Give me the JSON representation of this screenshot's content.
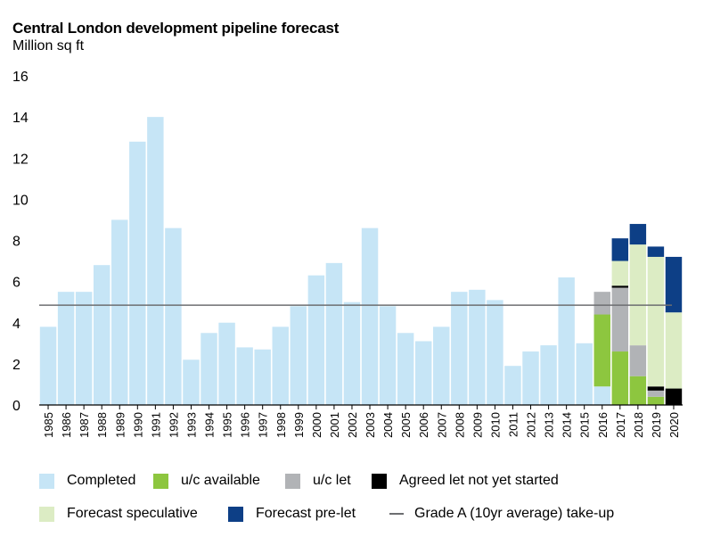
{
  "chart_data": {
    "type": "bar",
    "title": "Central London development pipeline forecast",
    "subtitle": "Million sq ft",
    "ylim": [
      0,
      16
    ],
    "yticks": [
      0,
      2,
      4,
      6,
      8,
      10,
      12,
      14,
      16
    ],
    "categories": [
      "1985",
      "1986",
      "1987",
      "1988",
      "1989",
      "1990",
      "1991",
      "1992",
      "1993",
      "1994",
      "1995",
      "1996",
      "1997",
      "1998",
      "1999",
      "2000",
      "2001",
      "2002",
      "2003",
      "2004",
      "2005",
      "2006",
      "2007",
      "2008",
      "2009",
      "2010",
      "2011",
      "2012",
      "2013",
      "2014",
      "2015",
      "2016",
      "2017",
      "2018",
      "2019",
      "2020"
    ],
    "stacked": true,
    "series": [
      {
        "name": "Completed",
        "color": "#c6e5f6",
        "values": [
          3.8,
          5.5,
          5.5,
          6.8,
          9.0,
          12.8,
          14.0,
          8.6,
          2.2,
          3.5,
          4.0,
          2.8,
          2.7,
          3.8,
          4.8,
          6.3,
          6.9,
          5.0,
          8.6,
          4.8,
          3.5,
          3.1,
          3.8,
          5.5,
          5.6,
          5.1,
          1.9,
          2.6,
          2.9,
          6.2,
          3.0,
          0.9,
          0,
          0,
          0,
          0
        ]
      },
      {
        "name": "Agreed let not yet started",
        "color": "#000000",
        "values": [
          0,
          0,
          0,
          0,
          0,
          0,
          0,
          0,
          0,
          0,
          0,
          0,
          0,
          0,
          0,
          0,
          0,
          0,
          0,
          0,
          0,
          0,
          0,
          0,
          0,
          0,
          0,
          0,
          0,
          0,
          0,
          0,
          0,
          0,
          0,
          0.8
        ]
      },
      {
        "name": "u/c available",
        "color": "#8dc63f",
        "values": [
          0,
          0,
          0,
          0,
          0,
          0,
          0,
          0,
          0,
          0,
          0,
          0,
          0,
          0,
          0,
          0,
          0,
          0,
          0,
          0,
          0,
          0,
          0,
          0,
          0,
          0,
          0,
          0,
          0,
          0,
          0,
          3.5,
          2.6,
          1.4,
          0.4,
          0
        ]
      },
      {
        "name": "u/c let",
        "color": "#b1b3b6",
        "values": [
          0,
          0,
          0,
          0,
          0,
          0,
          0,
          0,
          0,
          0,
          0,
          0,
          0,
          0,
          0,
          0,
          0,
          0,
          0,
          0,
          0,
          0,
          0,
          0,
          0,
          0,
          0,
          0,
          0,
          0,
          0,
          1.1,
          3.1,
          1.5,
          0.3,
          0
        ]
      },
      {
        "name": "Agreed let not yet started ",
        "color": "#000000",
        "values": [
          0,
          0,
          0,
          0,
          0,
          0,
          0,
          0,
          0,
          0,
          0,
          0,
          0,
          0,
          0,
          0,
          0,
          0,
          0,
          0,
          0,
          0,
          0,
          0,
          0,
          0,
          0,
          0,
          0,
          0,
          0,
          0,
          0.1,
          0,
          0.2,
          0
        ]
      },
      {
        "name": "Forecast speculative",
        "color": "#dcecc4",
        "values": [
          0,
          0,
          0,
          0,
          0,
          0,
          0,
          0,
          0,
          0,
          0,
          0,
          0,
          0,
          0,
          0,
          0,
          0,
          0,
          0,
          0,
          0,
          0,
          0,
          0,
          0,
          0,
          0,
          0,
          0,
          0,
          0,
          1.2,
          4.9,
          6.3,
          3.7
        ]
      },
      {
        "name": "Forecast pre-let",
        "color": "#0d3f86",
        "values": [
          0,
          0,
          0,
          0,
          0,
          0,
          0,
          0,
          0,
          0,
          0,
          0,
          0,
          0,
          0,
          0,
          0,
          0,
          0,
          0,
          0,
          0,
          0,
          0,
          0,
          0,
          0,
          0,
          0,
          0,
          0,
          0,
          1.1,
          1.0,
          0.5,
          2.7
        ]
      }
    ],
    "reference_line": {
      "name": "Grade A (10yr average) take-up",
      "value": 4.85,
      "color": "#6d6e71"
    },
    "grid": false,
    "legend_position": "bottom"
  },
  "legend": {
    "items": [
      {
        "label": "Completed",
        "color": "#c6e5f6",
        "kind": "box"
      },
      {
        "label": "u/c available",
        "color": "#8dc63f",
        "kind": "box"
      },
      {
        "label": "u/c let",
        "color": "#b1b3b6",
        "kind": "box"
      },
      {
        "label": "Agreed let not yet started",
        "color": "#000000",
        "kind": "box"
      },
      {
        "label": "Forecast speculative",
        "color": "#dcecc4",
        "kind": "box"
      },
      {
        "label": "Forecast pre-let",
        "color": "#0d3f86",
        "kind": "box"
      },
      {
        "label": "Grade A (10yr average) take-up",
        "color": "#6d6e71",
        "kind": "line"
      }
    ]
  }
}
